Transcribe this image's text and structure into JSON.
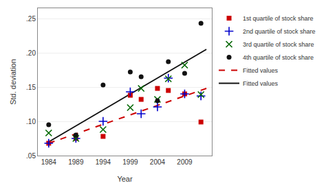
{
  "chart_data": {
    "type": "scatter",
    "xlabel": "Year",
    "ylabel": "Std. deviation",
    "xlim": [
      1982,
      2014
    ],
    "ylim": [
      0.05,
      0.265
    ],
    "xticks": [
      1984,
      1989,
      1994,
      1999,
      2004,
      2009
    ],
    "yticks": [
      {
        "value": 0.05,
        "label": ".05"
      },
      {
        "value": 0.1,
        "label": ".10"
      },
      {
        "value": 0.15,
        "label": ".15"
      },
      {
        "value": 0.2,
        "label": ".20"
      },
      {
        "value": 0.25,
        "label": ".25"
      }
    ],
    "grid": "y",
    "series": [
      {
        "name": "Fitted values",
        "type": "line",
        "line_style": "dashed",
        "color": "#cc0000",
        "x": [
          1984,
          2013
        ],
        "values": [
          0.068,
          0.148
        ]
      },
      {
        "name": "Fitted values",
        "type": "line",
        "line_style": "solid",
        "color": "#111111",
        "x": [
          1984,
          2013
        ],
        "values": [
          0.07,
          0.205
        ]
      },
      {
        "name": "1st quartile of stock share",
        "type": "scatter",
        "marker": "square",
        "color": "#cc0000",
        "x": [
          1984,
          1989,
          1994,
          1999,
          2001,
          2004,
          2006,
          2009,
          2012
        ],
        "values": [
          0.068,
          0.075,
          0.078,
          0.138,
          0.132,
          0.148,
          0.145,
          0.14,
          0.099
        ]
      },
      {
        "name": "2nd quartile of stock share",
        "type": "scatter",
        "marker": "plus",
        "color": "#0000cc",
        "x": [
          1984,
          1989,
          1994,
          1999,
          2001,
          2004,
          2006,
          2009,
          2012
        ],
        "values": [
          0.068,
          0.075,
          0.1,
          0.143,
          0.111,
          0.121,
          0.163,
          0.14,
          0.137
        ]
      },
      {
        "name": "3rd quartile of stock share",
        "type": "scatter",
        "marker": "x",
        "color": "#006600",
        "x": [
          1984,
          1989,
          1994,
          1999,
          2001,
          2004,
          2006,
          2009,
          2012
        ],
        "values": [
          0.083,
          0.075,
          0.088,
          0.12,
          0.148,
          0.132,
          0.162,
          0.182,
          0.139
        ]
      },
      {
        "name": "4th quartile of stock share",
        "type": "scatter",
        "marker": "circle",
        "color": "#111111",
        "x": [
          1984,
          1989,
          1994,
          1999,
          2001,
          2004,
          2006,
          2009,
          2012
        ],
        "values": [
          0.095,
          0.08,
          0.153,
          0.172,
          0.165,
          0.13,
          0.187,
          0.17,
          0.243
        ]
      }
    ]
  }
}
